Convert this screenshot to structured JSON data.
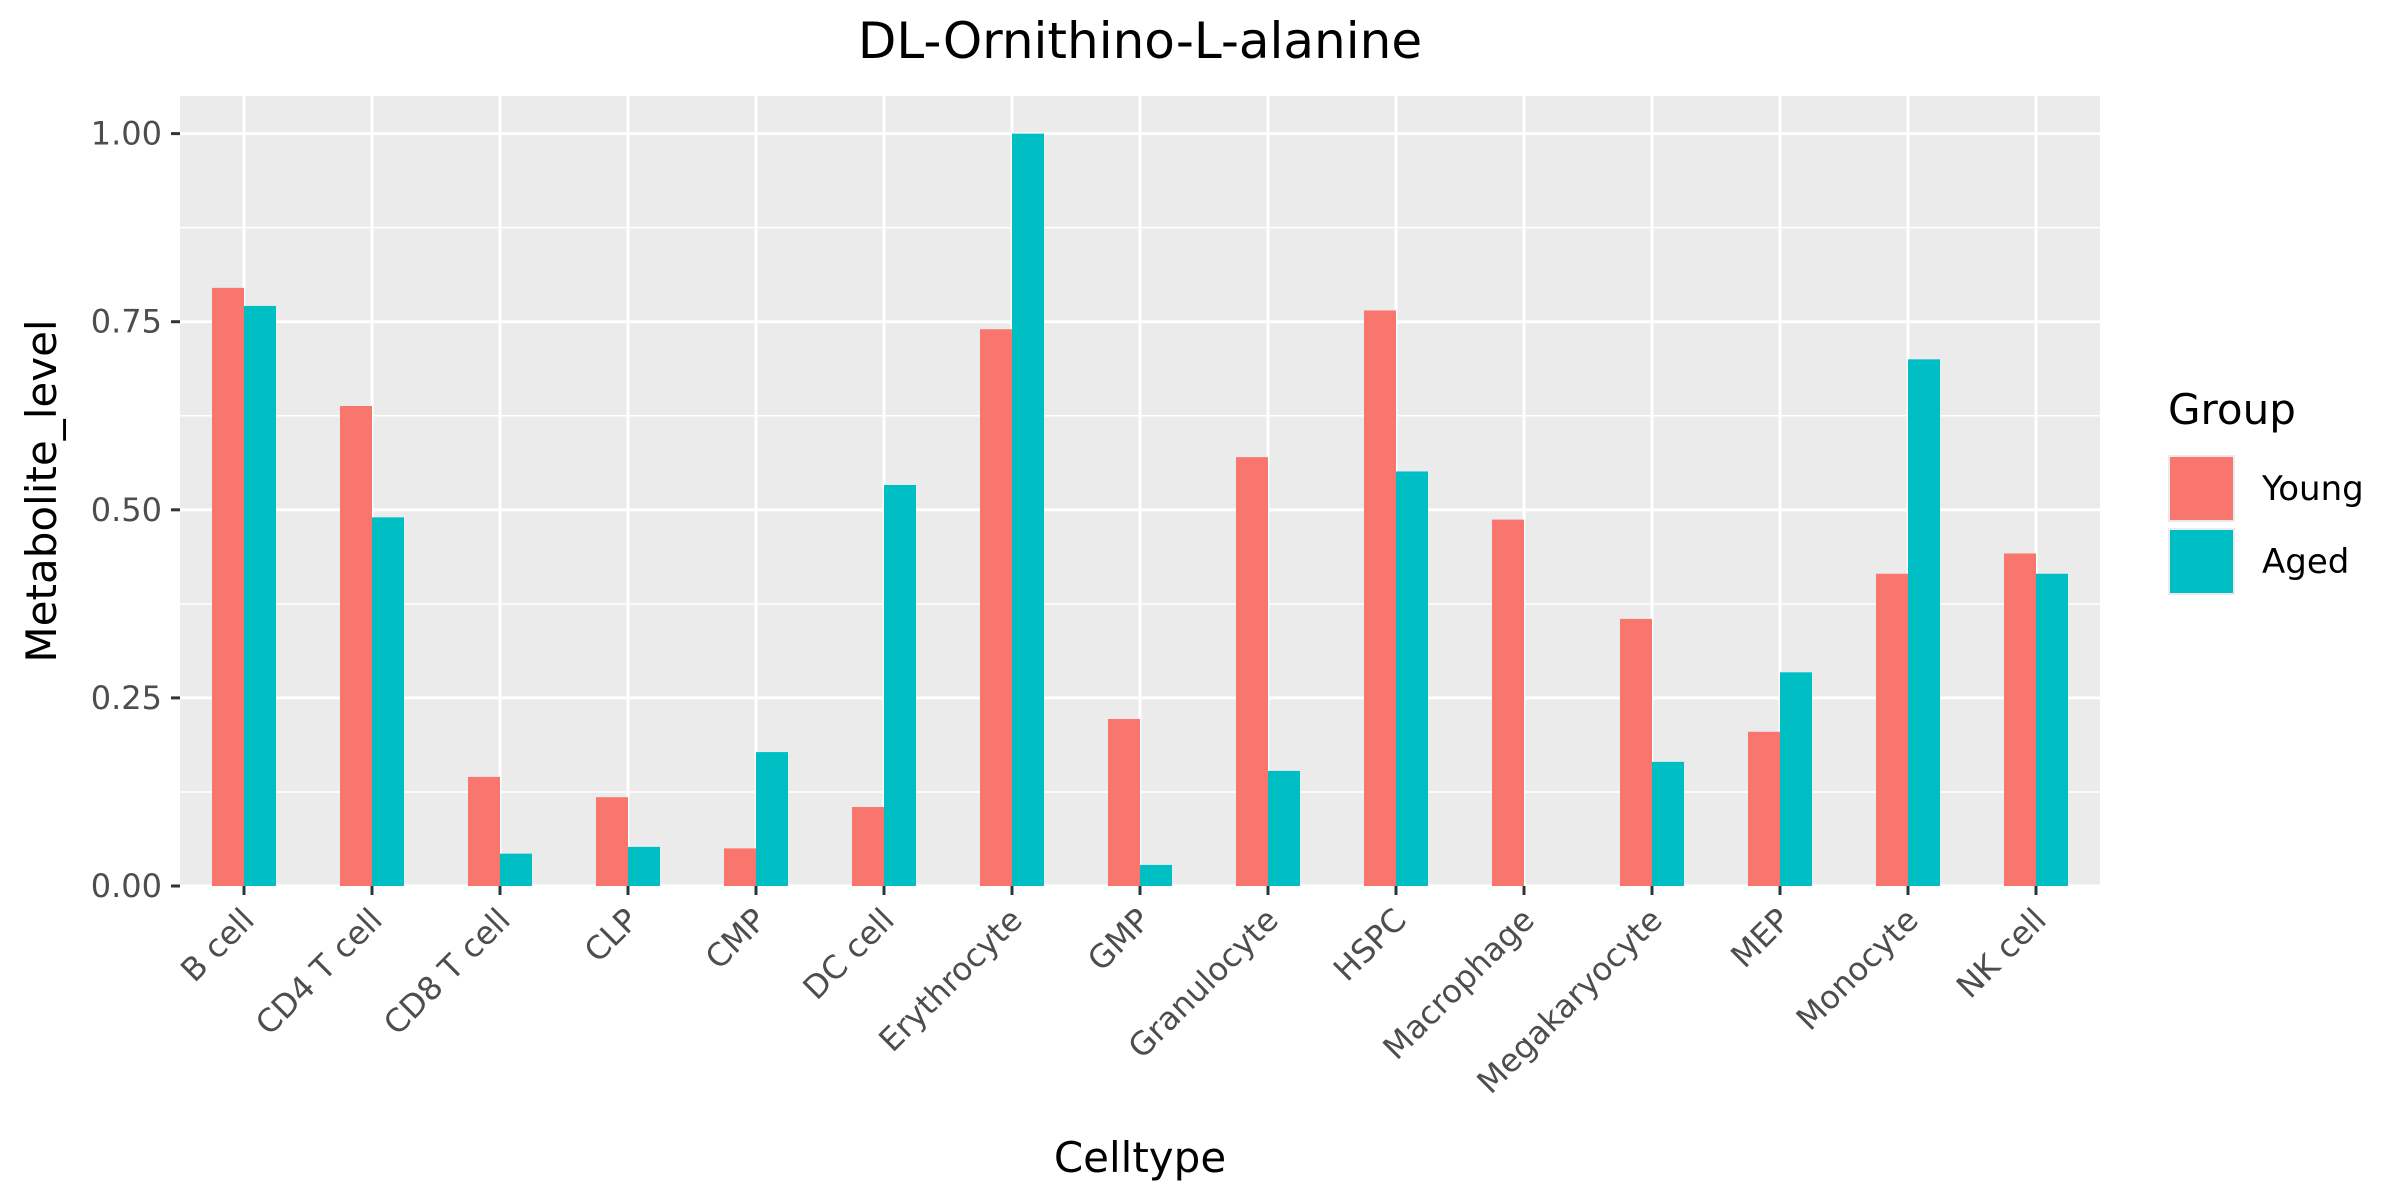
{
  "chart_data": {
    "type": "bar",
    "title": "DL-Ornithino-L-alanine",
    "xlabel": "Celltype",
    "ylabel": "Metabolite_level",
    "ylim": [
      0,
      1.05
    ],
    "yticks": [
      "0.00",
      "0.25",
      "0.50",
      "0.75",
      "1.00"
    ],
    "ytick_values": [
      0,
      0.25,
      0.5,
      0.75,
      1.0
    ],
    "grid": true,
    "legend_title": "Group",
    "legend_position": "right",
    "categories": [
      "B cell",
      "CD4 T cell",
      "CD8 T cell",
      "CLP",
      "CMP",
      "DC cell",
      "Erythrocyte",
      "GMP",
      "Granulocyte",
      "HSPC",
      "Macrophage",
      "Megakaryocyte",
      "MEP",
      "Monocyte",
      "NK cell"
    ],
    "series": [
      {
        "name": "Young",
        "color": "#F8766D",
        "values": [
          0.795,
          0.638,
          0.145,
          0.118,
          0.05,
          0.105,
          0.74,
          0.222,
          0.57,
          0.765,
          0.487,
          0.355,
          0.205,
          0.415,
          0.442
        ]
      },
      {
        "name": "Aged",
        "color": "#00BFC4",
        "values": [
          0.771,
          0.49,
          0.043,
          0.052,
          0.178,
          0.533,
          1.0,
          0.028,
          0.153,
          0.551,
          0.0,
          0.165,
          0.284,
          0.7,
          0.415
        ]
      }
    ]
  }
}
